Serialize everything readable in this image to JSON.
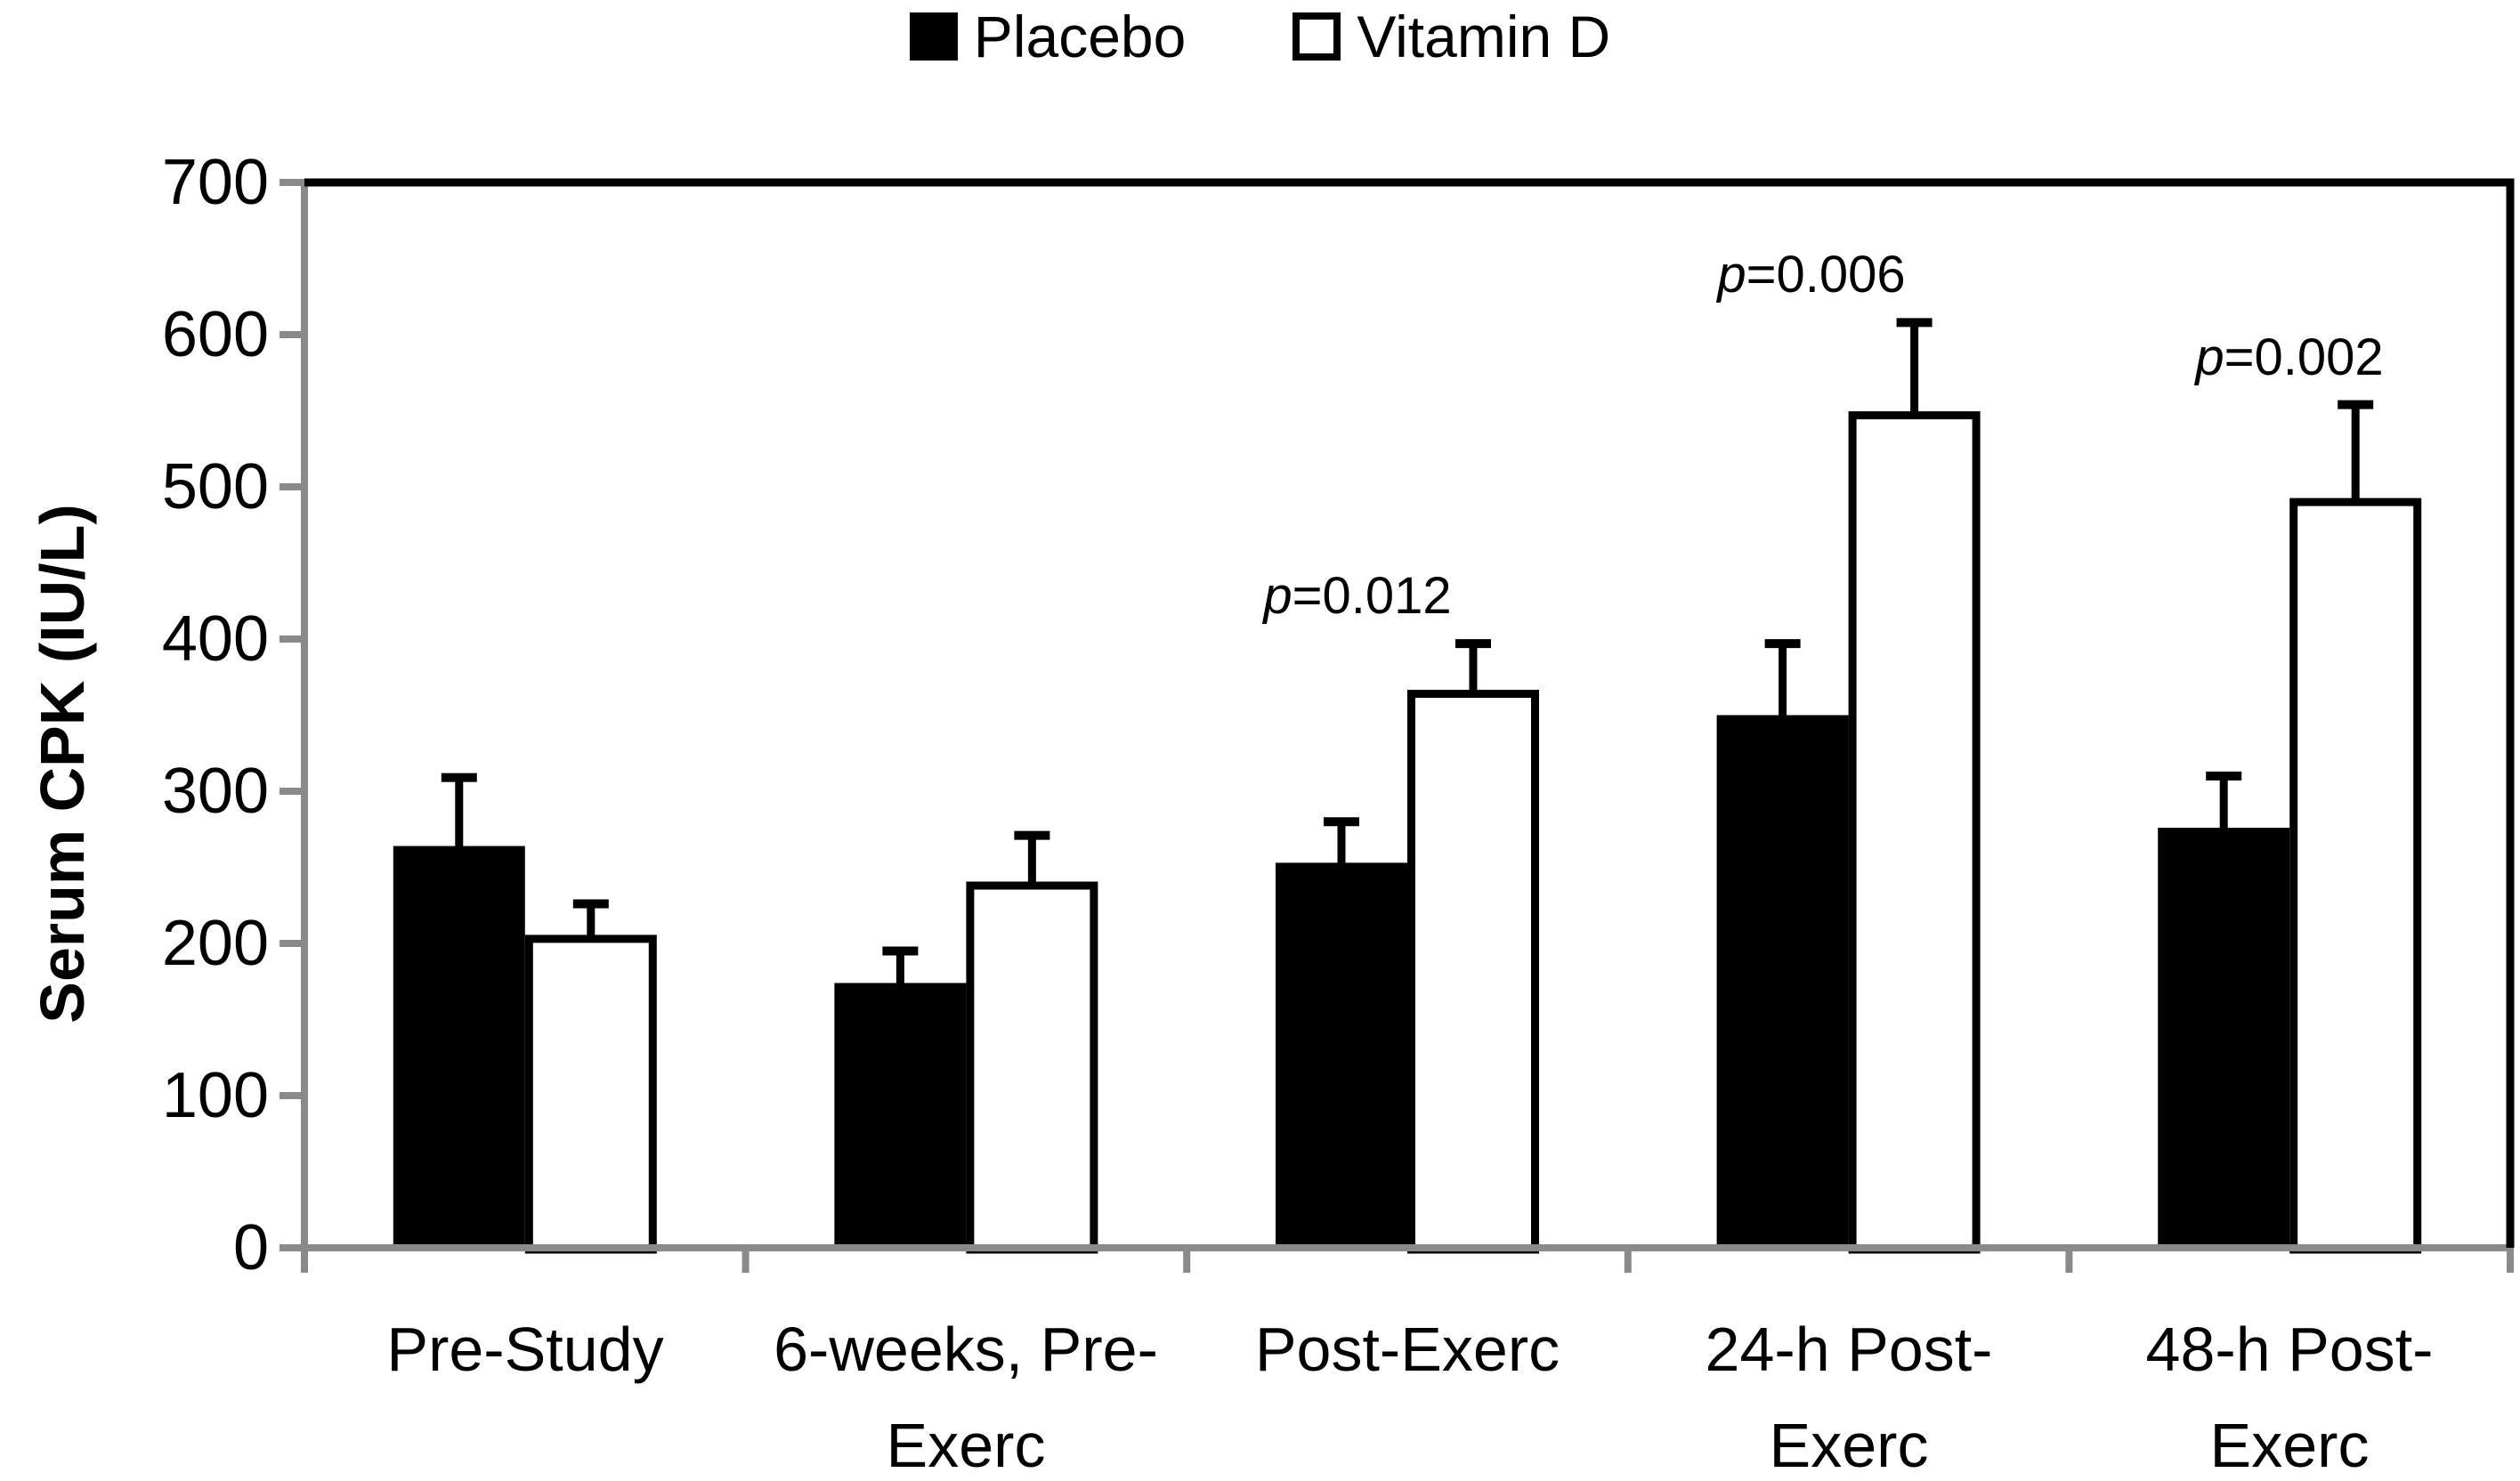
{
  "chart_data": {
    "type": "bar",
    "title": "",
    "xlabel": "",
    "ylabel": "Serum CPK (IU/L)",
    "ylim": [
      0,
      700
    ],
    "yticks": [
      0,
      100,
      200,
      300,
      400,
      500,
      600,
      700
    ],
    "grid": false,
    "legend_position": "top-center",
    "categories": [
      "Pre-Study",
      "6-weeks, Pre-Exerc",
      "Post-Exerc",
      "24-h Post-Exerc",
      "48-h Post-Exerc"
    ],
    "category_label_lines": [
      [
        "Pre-Study"
      ],
      [
        "6-weeks, Pre-",
        "Exerc"
      ],
      [
        "Post-Exerc"
      ],
      [
        "24-h Post-",
        "Exerc"
      ],
      [
        "48-h Post-",
        "Exerc"
      ]
    ],
    "series": [
      {
        "name": "Placebo",
        "swatch": "filled-black-square",
        "values": [
          264,
          174,
          253,
          350,
          276
        ],
        "error_up": [
          45,
          21,
          27,
          47,
          34
        ]
      },
      {
        "name": "Vitamin D",
        "swatch": "white-outlined-square",
        "values": [
          203,
          238,
          364,
          547,
          490
        ],
        "error_up": [
          23,
          33,
          33,
          61,
          64
        ]
      }
    ],
    "annotations": [
      {
        "text": "p=0.012",
        "category_index": 2
      },
      {
        "text": "p=0.006",
        "category_index": 3
      },
      {
        "text": "p=0.002",
        "category_index": 4
      }
    ],
    "colors": {
      "axis_gray": "#8a8a8a",
      "bar_black": "#000000",
      "bar_white_fill": "#ffffff",
      "outline_black": "#000000",
      "background": "#ffffff"
    }
  }
}
